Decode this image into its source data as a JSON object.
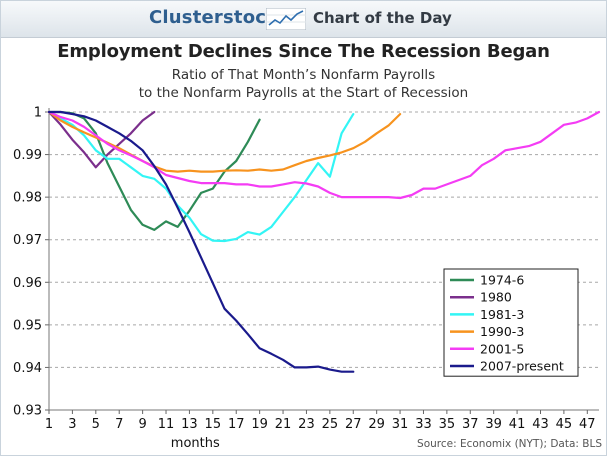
{
  "header": {
    "brand": "Clusterstock",
    "chart_of_day": "Chart of the Day",
    "logo_icon": "rising-chart-icon"
  },
  "source": "Source: Economix (NYT); Data: BLS",
  "chart_data": {
    "type": "line",
    "title": "Employment Declines Since The Recession Began",
    "subtitle_lines": [
      "Ratio of That Month’s Nonfarm Payrolls",
      "to the Nonfarm Payrolls at the Start of Recession"
    ],
    "xlabel": "months",
    "ylabel": "",
    "xlim": [
      1,
      48
    ],
    "ylim": [
      0.93,
      1.0
    ],
    "x_ticks": [
      1,
      3,
      5,
      7,
      9,
      11,
      13,
      15,
      17,
      19,
      21,
      23,
      25,
      27,
      29,
      31,
      33,
      35,
      37,
      39,
      41,
      43,
      45,
      47
    ],
    "y_ticks": [
      {
        "value": 0.93,
        "label": "0.93"
      },
      {
        "value": 0.94,
        "label": "0.94"
      },
      {
        "value": 0.95,
        "label": "0.95"
      },
      {
        "value": 0.96,
        "label": "0.96"
      },
      {
        "value": 0.97,
        "label": "0.97"
      },
      {
        "value": 0.98,
        "label": "0.98"
      },
      {
        "value": 0.99,
        "label": "0.99"
      },
      {
        "value": 1.0,
        "label": "1"
      }
    ],
    "grid": "horizontal-dashed",
    "legend_position": "bottom-right",
    "series": [
      {
        "name": "1974-6",
        "color": "#2e8b57",
        "x": [
          1,
          2,
          3,
          4,
          5,
          6,
          7,
          8,
          9,
          10,
          11,
          12,
          13,
          14,
          15,
          16,
          17,
          18,
          19
        ],
        "y": [
          1.0,
          1.0,
          0.9997,
          0.9985,
          0.995,
          0.988,
          0.9825,
          0.977,
          0.9735,
          0.9723,
          0.9743,
          0.973,
          0.9768,
          0.981,
          0.982,
          0.986,
          0.9885,
          0.993,
          0.9982
        ]
      },
      {
        "name": "1980",
        "color": "#7b2f8c",
        "x": [
          1,
          2,
          3,
          4,
          5,
          6,
          7,
          8,
          9,
          10
        ],
        "y": [
          1.0,
          0.997,
          0.9935,
          0.9905,
          0.987,
          0.99,
          0.9925,
          0.995,
          0.998,
          1.0
        ]
      },
      {
        "name": "1981-3",
        "color": "#33f5f5",
        "x": [
          1,
          2,
          3,
          4,
          5,
          6,
          7,
          8,
          9,
          10,
          11,
          12,
          13,
          14,
          15,
          16,
          17,
          18,
          19,
          20,
          21,
          22,
          23,
          24,
          25,
          26,
          27
        ],
        "y": [
          1.0,
          0.9985,
          0.997,
          0.9945,
          0.991,
          0.989,
          0.989,
          0.987,
          0.985,
          0.9843,
          0.982,
          0.978,
          0.9752,
          0.9713,
          0.9698,
          0.9697,
          0.9702,
          0.9718,
          0.9712,
          0.973,
          0.9765,
          0.98,
          0.984,
          0.988,
          0.9848,
          0.995,
          0.9995
        ]
      },
      {
        "name": "1990-3",
        "color": "#f7931e",
        "x": [
          1,
          2,
          3,
          4,
          5,
          6,
          7,
          8,
          9,
          10,
          11,
          12,
          13,
          14,
          15,
          16,
          17,
          18,
          19,
          20,
          21,
          22,
          23,
          24,
          25,
          26,
          27,
          28,
          29,
          30,
          31
        ],
        "y": [
          1.0,
          0.998,
          0.9965,
          0.9952,
          0.994,
          0.9928,
          0.9915,
          0.99,
          0.9885,
          0.9872,
          0.9862,
          0.986,
          0.9862,
          0.986,
          0.986,
          0.9862,
          0.9863,
          0.9862,
          0.9865,
          0.9862,
          0.9865,
          0.9875,
          0.9885,
          0.9892,
          0.9898,
          0.9905,
          0.9915,
          0.993,
          0.995,
          0.9968,
          0.9995
        ]
      },
      {
        "name": "2001-5",
        "color": "#f43cf4",
        "x": [
          1,
          2,
          3,
          4,
          5,
          6,
          7,
          8,
          9,
          10,
          11,
          12,
          13,
          14,
          15,
          16,
          17,
          18,
          19,
          20,
          21,
          22,
          23,
          24,
          25,
          26,
          27,
          28,
          29,
          30,
          31,
          32,
          33,
          34,
          35,
          36,
          37,
          38,
          39,
          40,
          41,
          42,
          43,
          44,
          45,
          46,
          47,
          48
        ],
        "y": [
          1.0,
          0.9988,
          0.998,
          0.9965,
          0.9945,
          0.9925,
          0.991,
          0.9898,
          0.9885,
          0.987,
          0.9852,
          0.9845,
          0.9838,
          0.9833,
          0.9833,
          0.9833,
          0.983,
          0.983,
          0.9825,
          0.9825,
          0.983,
          0.9835,
          0.9832,
          0.9825,
          0.981,
          0.98,
          0.98,
          0.98,
          0.98,
          0.98,
          0.9798,
          0.9805,
          0.982,
          0.982,
          0.983,
          0.984,
          0.985,
          0.9875,
          0.989,
          0.991,
          0.9915,
          0.992,
          0.993,
          0.995,
          0.997,
          0.9975,
          0.9985,
          1.0
        ]
      },
      {
        "name": "2007-present",
        "color": "#1a1a8c",
        "x": [
          1,
          2,
          3,
          4,
          5,
          6,
          7,
          8,
          9,
          10,
          11,
          12,
          13,
          14,
          15,
          16,
          17,
          18,
          19,
          20,
          21,
          22,
          23,
          24,
          25,
          26,
          27
        ],
        "y": [
          1.0,
          1.0,
          0.9995,
          0.999,
          0.998,
          0.9965,
          0.995,
          0.9932,
          0.991,
          0.9873,
          0.983,
          0.9775,
          0.9718,
          0.9658,
          0.9598,
          0.9538,
          0.951,
          0.9478,
          0.9445,
          0.9432,
          0.9418,
          0.94,
          0.94,
          0.9402,
          0.9395,
          0.939,
          0.939
        ]
      }
    ]
  }
}
